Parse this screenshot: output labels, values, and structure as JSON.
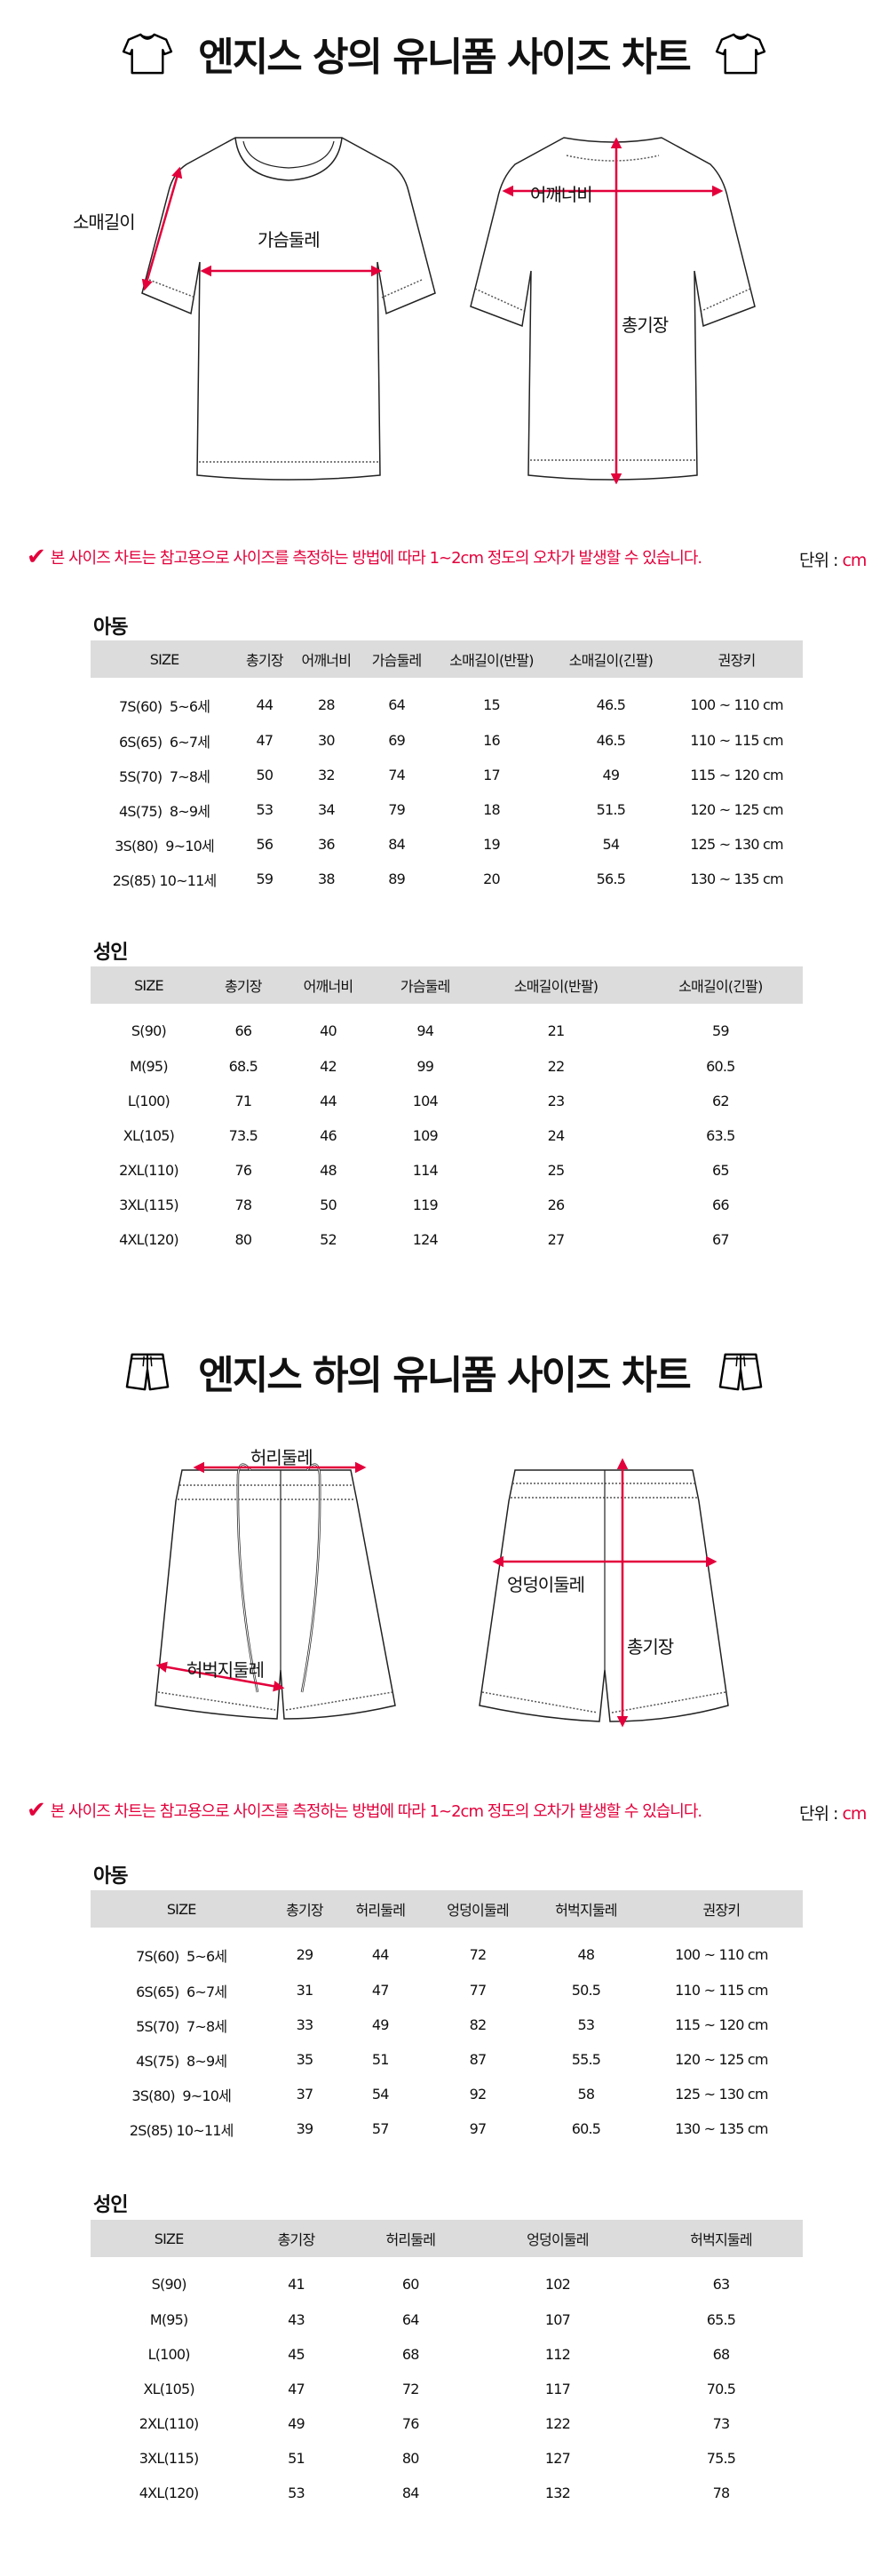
{
  "colors": {
    "accent": "#e3003b",
    "header_bg": "#dcdcdc"
  },
  "top": {
    "title": "엔지스 상의 유니폼 사이즈 차트",
    "icon": "tshirt-icon",
    "labels": {
      "sleeve": "소매길이",
      "chest": "가슴둘레",
      "shoulder": "어깨너비",
      "length": "총기장"
    },
    "notice": "본 사이즈 차트는 참고용으로 사이즈를 측정하는 방법에 따라 1~2cm 정도의 오차가 발생할 수 있습니다.",
    "unit_label": "단위 : ",
    "unit_value": "cm",
    "kids": {
      "label": "아동",
      "headers": [
        "SIZE",
        "총기장",
        "어깨너비",
        "가슴둘레",
        "소매길이(반팔)",
        "소매길이(긴팔)",
        "권장키"
      ],
      "rows": [
        [
          "7S(60)  5~6세",
          "44",
          "28",
          "64",
          "15",
          "46.5",
          "100 ~ 110 cm"
        ],
        [
          "6S(65)  6~7세",
          "47",
          "30",
          "69",
          "16",
          "46.5",
          "110 ~ 115 cm"
        ],
        [
          "5S(70)  7~8세",
          "50",
          "32",
          "74",
          "17",
          "49",
          "115 ~ 120 cm"
        ],
        [
          "4S(75)  8~9세",
          "53",
          "34",
          "79",
          "18",
          "51.5",
          "120 ~ 125 cm"
        ],
        [
          "3S(80)  9~10세",
          "56",
          "36",
          "84",
          "19",
          "54",
          "125 ~ 130 cm"
        ],
        [
          "2S(85) 10~11세",
          "59",
          "38",
          "89",
          "20",
          "56.5",
          "130 ~ 135 cm"
        ]
      ]
    },
    "adult": {
      "label": "성인",
      "headers": [
        "SIZE",
        "총기장",
        "어깨너비",
        "가슴둘레",
        "소매길이(반팔)",
        "소매길이(긴팔)"
      ],
      "rows": [
        [
          "S(90)",
          "66",
          "40",
          "94",
          "21",
          "59"
        ],
        [
          "M(95)",
          "68.5",
          "42",
          "99",
          "22",
          "60.5"
        ],
        [
          "L(100)",
          "71",
          "44",
          "104",
          "23",
          "62"
        ],
        [
          "XL(105)",
          "73.5",
          "46",
          "109",
          "24",
          "63.5"
        ],
        [
          "2XL(110)",
          "76",
          "48",
          "114",
          "25",
          "65"
        ],
        [
          "3XL(115)",
          "78",
          "50",
          "119",
          "26",
          "66"
        ],
        [
          "4XL(120)",
          "80",
          "52",
          "124",
          "27",
          "67"
        ]
      ]
    }
  },
  "bottom": {
    "title": "엔지스 하의 유니폼 사이즈 차트",
    "icon": "shorts-icon",
    "labels": {
      "waist": "허리둘레",
      "thigh": "허벅지둘레",
      "hip": "엉덩이둘레",
      "length": "총기장"
    },
    "notice": "본 사이즈 차트는 참고용으로 사이즈를 측정하는 방법에 따라 1~2cm 정도의 오차가 발생할 수 있습니다.",
    "unit_label": "단위 : ",
    "unit_value": "cm",
    "kids": {
      "label": "아동",
      "headers": [
        "SIZE",
        "총기장",
        "허리둘레",
        "엉덩이둘레",
        "허벅지둘레",
        "권장키"
      ],
      "rows": [
        [
          "7S(60)  5~6세",
          "29",
          "44",
          "72",
          "48",
          "100 ~ 110 cm"
        ],
        [
          "6S(65)  6~7세",
          "31",
          "47",
          "77",
          "50.5",
          "110 ~ 115 cm"
        ],
        [
          "5S(70)  7~8세",
          "33",
          "49",
          "82",
          "53",
          "115 ~ 120 cm"
        ],
        [
          "4S(75)  8~9세",
          "35",
          "51",
          "87",
          "55.5",
          "120 ~ 125 cm"
        ],
        [
          "3S(80)  9~10세",
          "37",
          "54",
          "92",
          "58",
          "125 ~ 130 cm"
        ],
        [
          "2S(85) 10~11세",
          "39",
          "57",
          "97",
          "60.5",
          "130 ~ 135 cm"
        ]
      ]
    },
    "adult": {
      "label": "성인",
      "headers": [
        "SIZE",
        "총기장",
        "허리둘레",
        "엉덩이둘레",
        "허벅지둘레"
      ],
      "rows": [
        [
          "S(90)",
          "41",
          "60",
          "102",
          "63"
        ],
        [
          "M(95)",
          "43",
          "64",
          "107",
          "65.5"
        ],
        [
          "L(100)",
          "45",
          "68",
          "112",
          "68"
        ],
        [
          "XL(105)",
          "47",
          "72",
          "117",
          "70.5"
        ],
        [
          "2XL(110)",
          "49",
          "76",
          "122",
          "73"
        ],
        [
          "3XL(115)",
          "51",
          "80",
          "127",
          "75.5"
        ],
        [
          "4XL(120)",
          "53",
          "84",
          "132",
          "78"
        ]
      ]
    }
  }
}
